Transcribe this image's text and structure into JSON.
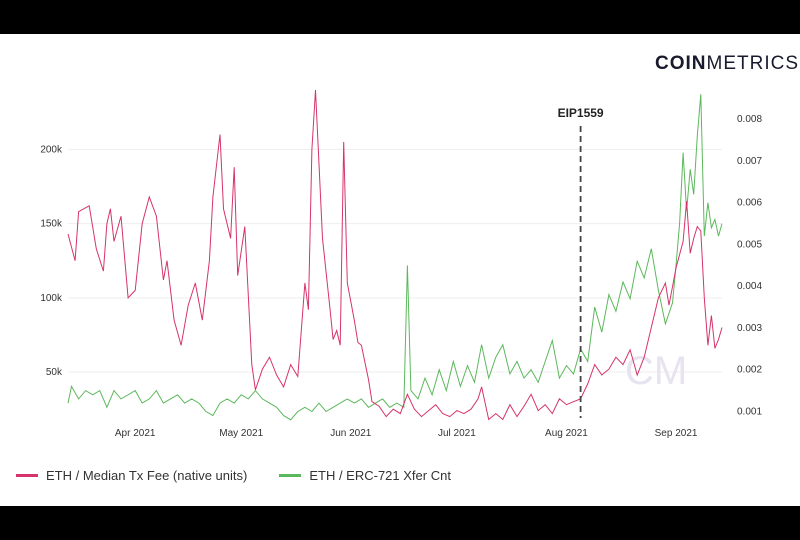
{
  "brand": {
    "part1": "COIN",
    "part2": "METRICS"
  },
  "colors": {
    "fee": "#d6336c",
    "xfer": "#5cb85c",
    "grid": "#eeeeee",
    "annotation": "#444444"
  },
  "watermark": "CM",
  "chart_data": {
    "type": "line",
    "x_tick_labels": [
      "Apr 2021",
      "May 2021",
      "Jun 2021",
      "Jul 2021",
      "Aug 2021",
      "Sep 2021"
    ],
    "x_range": [
      "2021-03-13",
      "2021-09-14"
    ],
    "y_left": {
      "ticks": [
        50000,
        100000,
        150000,
        200000
      ],
      "tick_labels": [
        "50k",
        "100k",
        "150k",
        "200k"
      ],
      "range": [
        15000,
        240000
      ]
    },
    "y_right": {
      "ticks": [
        0.001,
        0.002,
        0.003,
        0.004,
        0.005,
        0.006,
        0.007,
        0.008
      ],
      "tick_labels": [
        "0.001",
        "0.002",
        "0.003",
        "0.004",
        "0.005",
        "0.006",
        "0.007",
        "0.008"
      ],
      "range": [
        0.0007,
        0.0087
      ]
    },
    "annotation": {
      "label": "EIP1559",
      "date": "2021-08-05"
    },
    "grid": "horizontal",
    "legend_position": "bottom-left",
    "series": [
      {
        "name": "ETH / Median Tx Fee (native units)",
        "axis": "left",
        "points": [
          [
            "2021-03-13",
            143000
          ],
          [
            "2021-03-15",
            125000
          ],
          [
            "2021-03-16",
            158000
          ],
          [
            "2021-03-19",
            162000
          ],
          [
            "2021-03-21",
            133000
          ],
          [
            "2021-03-23",
            118000
          ],
          [
            "2021-03-24",
            150000
          ],
          [
            "2021-03-25",
            160000
          ],
          [
            "2021-03-26",
            138000
          ],
          [
            "2021-03-28",
            155000
          ],
          [
            "2021-03-30",
            100000
          ],
          [
            "2021-04-01",
            105000
          ],
          [
            "2021-04-03",
            150000
          ],
          [
            "2021-04-05",
            168000
          ],
          [
            "2021-04-07",
            155000
          ],
          [
            "2021-04-09",
            112000
          ],
          [
            "2021-04-10",
            125000
          ],
          [
            "2021-04-12",
            85000
          ],
          [
            "2021-04-14",
            68000
          ],
          [
            "2021-04-16",
            95000
          ],
          [
            "2021-04-18",
            110000
          ],
          [
            "2021-04-20",
            85000
          ],
          [
            "2021-04-22",
            125000
          ],
          [
            "2021-04-23",
            168000
          ],
          [
            "2021-04-25",
            210000
          ],
          [
            "2021-04-26",
            160000
          ],
          [
            "2021-04-28",
            140000
          ],
          [
            "2021-04-29",
            188000
          ],
          [
            "2021-04-30",
            115000
          ],
          [
            "2021-05-02",
            148000
          ],
          [
            "2021-05-04",
            55000
          ],
          [
            "2021-05-05",
            38000
          ],
          [
            "2021-05-07",
            52000
          ],
          [
            "2021-05-09",
            60000
          ],
          [
            "2021-05-11",
            48000
          ],
          [
            "2021-05-13",
            40000
          ],
          [
            "2021-05-15",
            55000
          ],
          [
            "2021-05-17",
            47000
          ],
          [
            "2021-05-19",
            110000
          ],
          [
            "2021-05-20",
            92000
          ],
          [
            "2021-05-21",
            200000
          ],
          [
            "2021-05-22",
            240000
          ],
          [
            "2021-05-24",
            140000
          ],
          [
            "2021-05-26",
            95000
          ],
          [
            "2021-05-27",
            72000
          ],
          [
            "2021-05-28",
            78000
          ],
          [
            "2021-05-29",
            68000
          ],
          [
            "2021-05-30",
            205000
          ],
          [
            "2021-05-31",
            110000
          ],
          [
            "2021-06-02",
            85000
          ],
          [
            "2021-06-03",
            70000
          ],
          [
            "2021-06-04",
            68000
          ],
          [
            "2021-06-06",
            45000
          ],
          [
            "2021-06-07",
            30000
          ],
          [
            "2021-06-09",
            27000
          ],
          [
            "2021-06-11",
            20000
          ],
          [
            "2021-06-13",
            25000
          ],
          [
            "2021-06-15",
            22000
          ],
          [
            "2021-06-17",
            35000
          ],
          [
            "2021-06-19",
            25000
          ],
          [
            "2021-06-21",
            20000
          ],
          [
            "2021-06-23",
            24000
          ],
          [
            "2021-06-25",
            28000
          ],
          [
            "2021-06-27",
            22000
          ],
          [
            "2021-06-29",
            20000
          ],
          [
            "2021-07-01",
            24000
          ],
          [
            "2021-07-03",
            22000
          ],
          [
            "2021-07-05",
            25000
          ],
          [
            "2021-07-07",
            32000
          ],
          [
            "2021-07-08",
            40000
          ],
          [
            "2021-07-10",
            18000
          ],
          [
            "2021-07-12",
            22000
          ],
          [
            "2021-07-14",
            18000
          ],
          [
            "2021-07-16",
            28000
          ],
          [
            "2021-07-18",
            20000
          ],
          [
            "2021-07-20",
            27000
          ],
          [
            "2021-07-22",
            35000
          ],
          [
            "2021-07-24",
            24000
          ],
          [
            "2021-07-26",
            28000
          ],
          [
            "2021-07-28",
            22000
          ],
          [
            "2021-07-30",
            32000
          ],
          [
            "2021-08-01",
            28000
          ],
          [
            "2021-08-03",
            30000
          ],
          [
            "2021-08-05",
            32000
          ],
          [
            "2021-08-07",
            42000
          ],
          [
            "2021-08-09",
            55000
          ],
          [
            "2021-08-11",
            48000
          ],
          [
            "2021-08-13",
            52000
          ],
          [
            "2021-08-15",
            60000
          ],
          [
            "2021-08-17",
            55000
          ],
          [
            "2021-08-19",
            65000
          ],
          [
            "2021-08-21",
            48000
          ],
          [
            "2021-08-23",
            60000
          ],
          [
            "2021-08-25",
            80000
          ],
          [
            "2021-08-27",
            100000
          ],
          [
            "2021-08-29",
            110000
          ],
          [
            "2021-08-30",
            95000
          ],
          [
            "2021-09-01",
            120000
          ],
          [
            "2021-09-03",
            138000
          ],
          [
            "2021-09-04",
            165000
          ],
          [
            "2021-09-05",
            130000
          ],
          [
            "2021-09-06",
            140000
          ],
          [
            "2021-09-07",
            148000
          ],
          [
            "2021-09-08",
            145000
          ],
          [
            "2021-09-09",
            100000
          ],
          [
            "2021-09-10",
            68000
          ],
          [
            "2021-09-11",
            88000
          ],
          [
            "2021-09-12",
            66000
          ],
          [
            "2021-09-13",
            72000
          ],
          [
            "2021-09-14",
            80000
          ]
        ]
      },
      {
        "name": "ETH / ERC-721 Xfer Cnt",
        "axis": "right",
        "points": [
          [
            "2021-03-13",
            0.0012
          ],
          [
            "2021-03-14",
            0.0016
          ],
          [
            "2021-03-16",
            0.0013
          ],
          [
            "2021-03-18",
            0.0015
          ],
          [
            "2021-03-20",
            0.0014
          ],
          [
            "2021-03-22",
            0.0015
          ],
          [
            "2021-03-24",
            0.0011
          ],
          [
            "2021-03-26",
            0.0015
          ],
          [
            "2021-03-28",
            0.0013
          ],
          [
            "2021-03-30",
            0.0014
          ],
          [
            "2021-04-01",
            0.0015
          ],
          [
            "2021-04-03",
            0.0012
          ],
          [
            "2021-04-05",
            0.0013
          ],
          [
            "2021-04-07",
            0.0015
          ],
          [
            "2021-04-09",
            0.0012
          ],
          [
            "2021-04-11",
            0.0013
          ],
          [
            "2021-04-13",
            0.0014
          ],
          [
            "2021-04-15",
            0.0012
          ],
          [
            "2021-04-17",
            0.0013
          ],
          [
            "2021-04-19",
            0.0012
          ],
          [
            "2021-04-21",
            0.001
          ],
          [
            "2021-04-23",
            0.0009
          ],
          [
            "2021-04-25",
            0.0012
          ],
          [
            "2021-04-27",
            0.0013
          ],
          [
            "2021-04-29",
            0.0012
          ],
          [
            "2021-05-01",
            0.0014
          ],
          [
            "2021-05-03",
            0.0013
          ],
          [
            "2021-05-05",
            0.0015
          ],
          [
            "2021-05-07",
            0.0013
          ],
          [
            "2021-05-09",
            0.0012
          ],
          [
            "2021-05-11",
            0.0011
          ],
          [
            "2021-05-13",
            0.0009
          ],
          [
            "2021-05-15",
            0.0008
          ],
          [
            "2021-05-17",
            0.001
          ],
          [
            "2021-05-19",
            0.0011
          ],
          [
            "2021-05-21",
            0.001
          ],
          [
            "2021-05-23",
            0.0012
          ],
          [
            "2021-05-25",
            0.001
          ],
          [
            "2021-05-27",
            0.0011
          ],
          [
            "2021-05-29",
            0.0012
          ],
          [
            "2021-05-31",
            0.0013
          ],
          [
            "2021-06-02",
            0.0012
          ],
          [
            "2021-06-04",
            0.0013
          ],
          [
            "2021-06-06",
            0.0011
          ],
          [
            "2021-06-08",
            0.0012
          ],
          [
            "2021-06-10",
            0.0013
          ],
          [
            "2021-06-12",
            0.0011
          ],
          [
            "2021-06-14",
            0.0012
          ],
          [
            "2021-06-16",
            0.0011
          ],
          [
            "2021-06-17",
            0.0045
          ],
          [
            "2021-06-18",
            0.0015
          ],
          [
            "2021-06-20",
            0.0013
          ],
          [
            "2021-06-22",
            0.0018
          ],
          [
            "2021-06-24",
            0.0014
          ],
          [
            "2021-06-26",
            0.002
          ],
          [
            "2021-06-28",
            0.0015
          ],
          [
            "2021-06-30",
            0.0022
          ],
          [
            "2021-07-02",
            0.0016
          ],
          [
            "2021-07-04",
            0.0021
          ],
          [
            "2021-07-06",
            0.0017
          ],
          [
            "2021-07-08",
            0.0026
          ],
          [
            "2021-07-10",
            0.0018
          ],
          [
            "2021-07-12",
            0.0023
          ],
          [
            "2021-07-14",
            0.0026
          ],
          [
            "2021-07-16",
            0.0019
          ],
          [
            "2021-07-18",
            0.0022
          ],
          [
            "2021-07-20",
            0.0018
          ],
          [
            "2021-07-22",
            0.002
          ],
          [
            "2021-07-24",
            0.0017
          ],
          [
            "2021-07-26",
            0.0022
          ],
          [
            "2021-07-28",
            0.0027
          ],
          [
            "2021-07-30",
            0.0018
          ],
          [
            "2021-08-01",
            0.0021
          ],
          [
            "2021-08-03",
            0.0019
          ],
          [
            "2021-08-05",
            0.0025
          ],
          [
            "2021-08-07",
            0.0022
          ],
          [
            "2021-08-09",
            0.0035
          ],
          [
            "2021-08-11",
            0.0029
          ],
          [
            "2021-08-13",
            0.0038
          ],
          [
            "2021-08-15",
            0.0034
          ],
          [
            "2021-08-17",
            0.0041
          ],
          [
            "2021-08-19",
            0.0037
          ],
          [
            "2021-08-21",
            0.0046
          ],
          [
            "2021-08-23",
            0.0042
          ],
          [
            "2021-08-25",
            0.0049
          ],
          [
            "2021-08-27",
            0.0039
          ],
          [
            "2021-08-29",
            0.0031
          ],
          [
            "2021-08-31",
            0.0036
          ],
          [
            "2021-09-01",
            0.0045
          ],
          [
            "2021-09-02",
            0.0055
          ],
          [
            "2021-09-03",
            0.0072
          ],
          [
            "2021-09-04",
            0.0058
          ],
          [
            "2021-09-05",
            0.0068
          ],
          [
            "2021-09-06",
            0.0062
          ],
          [
            "2021-09-07",
            0.0076
          ],
          [
            "2021-09-08",
            0.0086
          ],
          [
            "2021-09-09",
            0.0052
          ],
          [
            "2021-09-10",
            0.006
          ],
          [
            "2021-09-11",
            0.0054
          ],
          [
            "2021-09-12",
            0.0056
          ],
          [
            "2021-09-13",
            0.0052
          ],
          [
            "2021-09-14",
            0.0055
          ]
        ]
      }
    ]
  }
}
